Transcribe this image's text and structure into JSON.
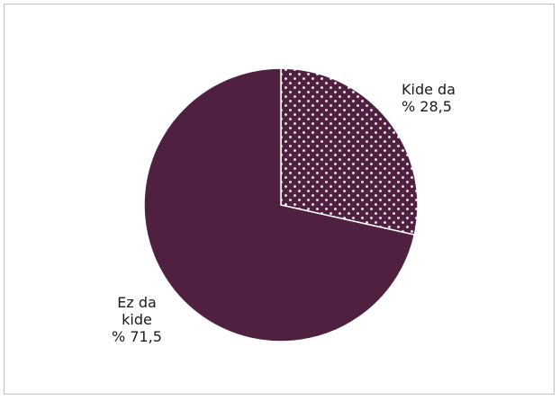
{
  "chart_data": {
    "type": "pie",
    "start_angle_deg": 0,
    "slices": [
      {
        "label_lines": [
          "Kide da",
          "% 28,5"
        ],
        "value": 28.5,
        "color": "#4f2040",
        "pattern": "dotted"
      },
      {
        "label_lines": [
          "Ez da",
          "kide",
          "% 71,5"
        ],
        "value": 71.5,
        "color": "#4f2040",
        "pattern": "solid"
      }
    ],
    "legend": "none"
  }
}
